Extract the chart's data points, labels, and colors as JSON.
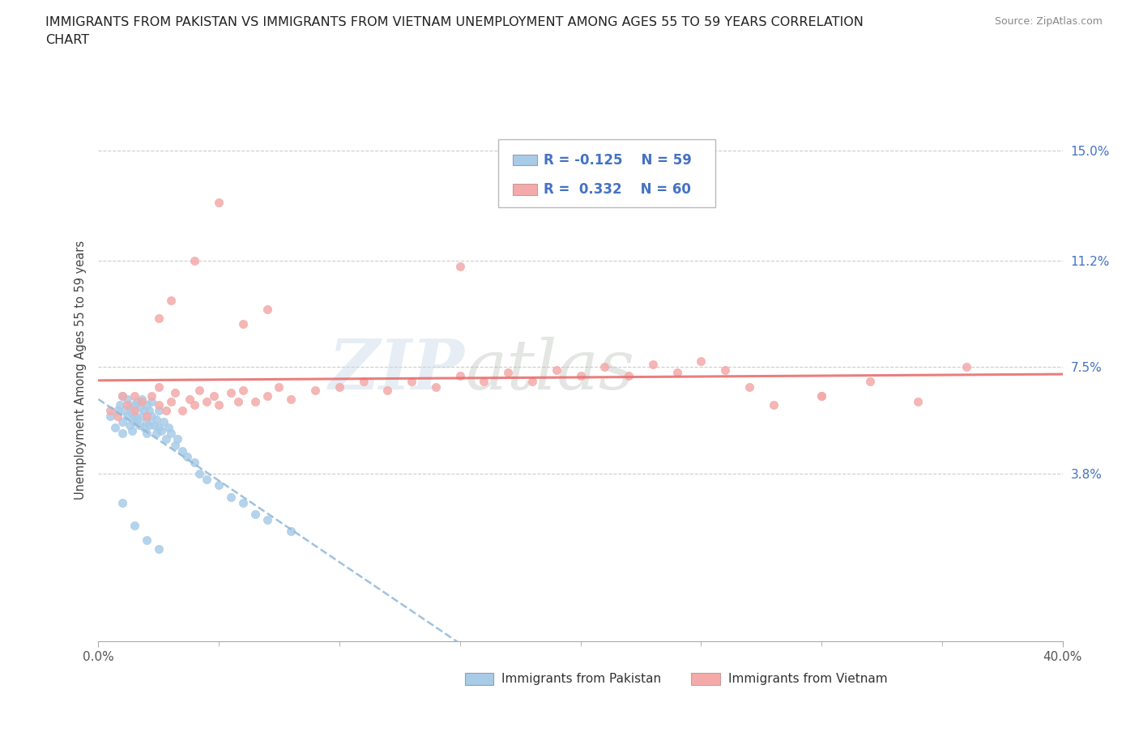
{
  "title_line1": "IMMIGRANTS FROM PAKISTAN VS IMMIGRANTS FROM VIETNAM UNEMPLOYMENT AMONG AGES 55 TO 59 YEARS CORRELATION",
  "title_line2": "CHART",
  "source": "Source: ZipAtlas.com",
  "ylabel": "Unemployment Among Ages 55 to 59 years",
  "xlim": [
    0.0,
    0.4
  ],
  "ylim": [
    -0.02,
    0.168
  ],
  "yticks": [
    0.038,
    0.075,
    0.112,
    0.15
  ],
  "ytick_labels": [
    "3.8%",
    "7.5%",
    "11.2%",
    "15.0%"
  ],
  "xtick_major": [
    0.0,
    0.4
  ],
  "xtick_major_labels": [
    "0.0%",
    "40.0%"
  ],
  "xtick_minor": [
    0.05,
    0.1,
    0.15,
    0.2,
    0.25,
    0.3,
    0.35
  ],
  "pakistan_color": "#a8cce8",
  "vietnam_color": "#f4aaaa",
  "pakistan_line_color": "#90b8d8",
  "vietnam_line_color": "#e87070",
  "legend_label_pakistan": "Immigrants from Pakistan",
  "legend_label_vietnam": "Immigrants from Vietnam",
  "watermark_zip": "ZIP",
  "watermark_atlas": "atlas",
  "pakistan_x": [
    0.005,
    0.007,
    0.008,
    0.009,
    0.01,
    0.01,
    0.01,
    0.011,
    0.012,
    0.012,
    0.013,
    0.013,
    0.014,
    0.014,
    0.015,
    0.015,
    0.015,
    0.016,
    0.016,
    0.017,
    0.017,
    0.018,
    0.018,
    0.019,
    0.019,
    0.02,
    0.02,
    0.02,
    0.021,
    0.021,
    0.022,
    0.022,
    0.023,
    0.024,
    0.024,
    0.025,
    0.025,
    0.026,
    0.027,
    0.028,
    0.029,
    0.03,
    0.032,
    0.033,
    0.035,
    0.037,
    0.04,
    0.042,
    0.045,
    0.05,
    0.055,
    0.06,
    0.065,
    0.07,
    0.08,
    0.01,
    0.015,
    0.02,
    0.025
  ],
  "pakistan_y": [
    0.058,
    0.054,
    0.06,
    0.062,
    0.065,
    0.056,
    0.052,
    0.06,
    0.058,
    0.064,
    0.055,
    0.061,
    0.053,
    0.059,
    0.058,
    0.062,
    0.056,
    0.057,
    0.063,
    0.055,
    0.061,
    0.058,
    0.064,
    0.054,
    0.06,
    0.056,
    0.062,
    0.052,
    0.06,
    0.055,
    0.058,
    0.063,
    0.055,
    0.057,
    0.052,
    0.054,
    0.06,
    0.053,
    0.056,
    0.05,
    0.054,
    0.052,
    0.048,
    0.05,
    0.046,
    0.044,
    0.042,
    0.038,
    0.036,
    0.034,
    0.03,
    0.028,
    0.024,
    0.022,
    0.018,
    0.028,
    0.02,
    0.015,
    0.012
  ],
  "vietnam_x": [
    0.005,
    0.008,
    0.01,
    0.012,
    0.015,
    0.015,
    0.018,
    0.02,
    0.022,
    0.025,
    0.025,
    0.028,
    0.03,
    0.032,
    0.035,
    0.038,
    0.04,
    0.042,
    0.045,
    0.048,
    0.05,
    0.055,
    0.058,
    0.06,
    0.065,
    0.07,
    0.075,
    0.08,
    0.09,
    0.1,
    0.11,
    0.12,
    0.13,
    0.14,
    0.15,
    0.16,
    0.17,
    0.18,
    0.19,
    0.2,
    0.21,
    0.22,
    0.23,
    0.24,
    0.25,
    0.26,
    0.27,
    0.28,
    0.3,
    0.32,
    0.34,
    0.36,
    0.025,
    0.03,
    0.04,
    0.05,
    0.06,
    0.07,
    0.15,
    0.3
  ],
  "vietnam_y": [
    0.06,
    0.058,
    0.065,
    0.062,
    0.06,
    0.065,
    0.063,
    0.058,
    0.065,
    0.062,
    0.068,
    0.06,
    0.063,
    0.066,
    0.06,
    0.064,
    0.062,
    0.067,
    0.063,
    0.065,
    0.062,
    0.066,
    0.063,
    0.067,
    0.063,
    0.065,
    0.068,
    0.064,
    0.067,
    0.068,
    0.07,
    0.067,
    0.07,
    0.068,
    0.072,
    0.07,
    0.073,
    0.07,
    0.074,
    0.072,
    0.075,
    0.072,
    0.076,
    0.073,
    0.077,
    0.074,
    0.068,
    0.062,
    0.065,
    0.07,
    0.063,
    0.075,
    0.092,
    0.098,
    0.112,
    0.132,
    0.09,
    0.095,
    0.11,
    0.065
  ]
}
